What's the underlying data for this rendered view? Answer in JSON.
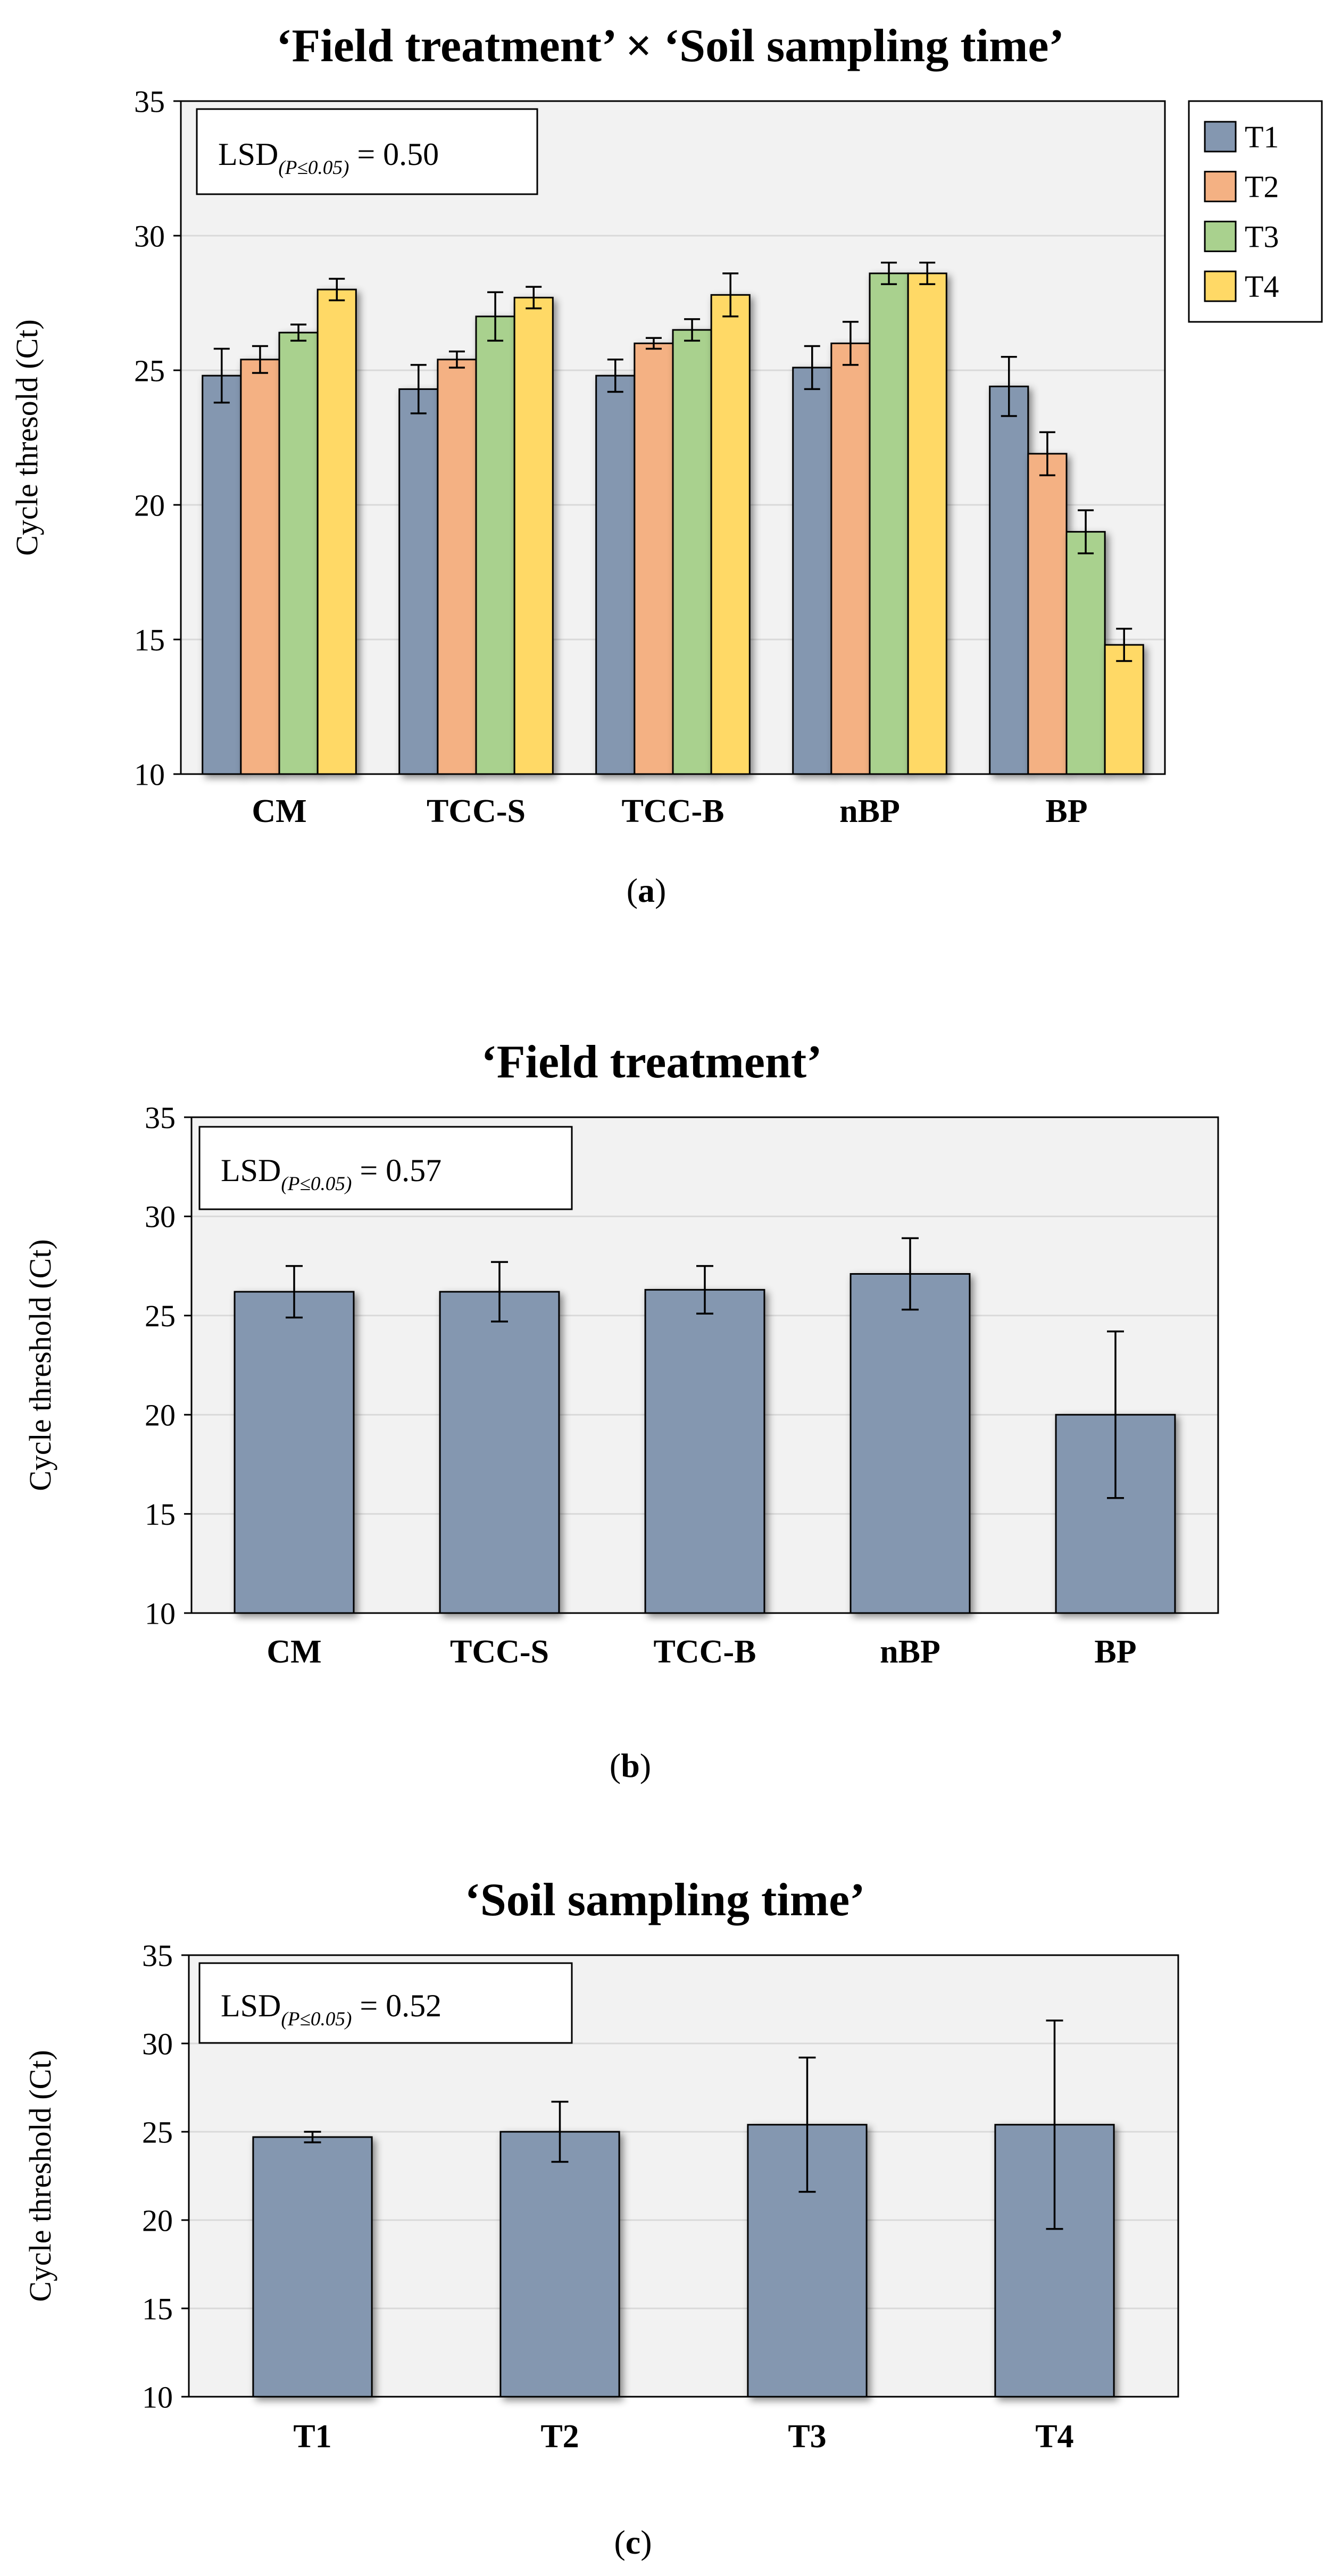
{
  "chart_data": [
    {
      "type": "bar",
      "title": "‘Field treatment’ × ‘Soil sampling time’",
      "ylabel": "Cycle thresold (Ct)",
      "xlabel": "",
      "ylim": [
        10,
        35
      ],
      "yticks": [
        10,
        15,
        20,
        25,
        30,
        35
      ],
      "grid": true,
      "legend_position": "top-right, outside plot",
      "annotation": {
        "prefix": "LSD",
        "subscript": "(P≤0.05)",
        "suffix": " = 0.50"
      },
      "categories": [
        "CM",
        "TCC-S",
        "TCC-B",
        "nBP",
        "BP"
      ],
      "series": [
        {
          "name": "T1",
          "color": "#8497b0",
          "values": [
            24.8,
            24.3,
            24.8,
            25.1,
            24.4
          ],
          "errors": [
            1.0,
            0.9,
            0.6,
            0.8,
            1.1
          ]
        },
        {
          "name": "T2",
          "color": "#f4b183",
          "values": [
            25.4,
            25.4,
            26.0,
            26.0,
            21.9
          ],
          "errors": [
            0.5,
            0.3,
            0.2,
            0.8,
            0.8
          ]
        },
        {
          "name": "T3",
          "color": "#a9d18e",
          "values": [
            26.4,
            27.0,
            26.5,
            28.6,
            19.0
          ],
          "errors": [
            0.3,
            0.9,
            0.4,
            0.4,
            0.8
          ]
        },
        {
          "name": "T4",
          "color": "#ffd966",
          "values": [
            28.0,
            27.7,
            27.8,
            28.6,
            14.8
          ],
          "errors": [
            0.4,
            0.4,
            0.8,
            0.4,
            0.6
          ]
        }
      ],
      "caption_letter": "a"
    },
    {
      "type": "bar",
      "title": "‘Field treatment’",
      "ylabel": "Cycle threshold (Ct)",
      "xlabel": "",
      "ylim": [
        10,
        35
      ],
      "yticks": [
        10,
        15,
        20,
        25,
        30,
        35
      ],
      "grid": true,
      "annotation": {
        "prefix": "LSD",
        "subscript": "(P≤0.05)",
        "suffix": " = 0.57"
      },
      "categories": [
        "CM",
        "TCC-S",
        "TCC-B",
        "nBP",
        "BP"
      ],
      "series": [
        {
          "color": "#8497b0",
          "values": [
            26.2,
            26.2,
            26.3,
            27.1,
            20.0
          ],
          "errors": [
            1.3,
            1.5,
            1.2,
            1.8,
            4.2
          ]
        }
      ],
      "caption_letter": "b"
    },
    {
      "type": "bar",
      "title": "‘Soil sampling time’",
      "ylabel": "Cycle threshold (Ct)",
      "xlabel": "",
      "ylim": [
        10,
        35
      ],
      "yticks": [
        10,
        15,
        20,
        25,
        30,
        35
      ],
      "grid": true,
      "annotation": {
        "prefix": "LSD",
        "subscript": "(P≤0.05)",
        "suffix": " = 0.52"
      },
      "categories": [
        "T1",
        "T2",
        "T3",
        "T4"
      ],
      "series": [
        {
          "color": "#8497b0",
          "values": [
            24.7,
            25.0,
            25.4,
            25.4
          ],
          "errors": [
            0.3,
            1.7,
            3.8,
            5.9
          ]
        }
      ],
      "caption_letter": "c"
    }
  ]
}
